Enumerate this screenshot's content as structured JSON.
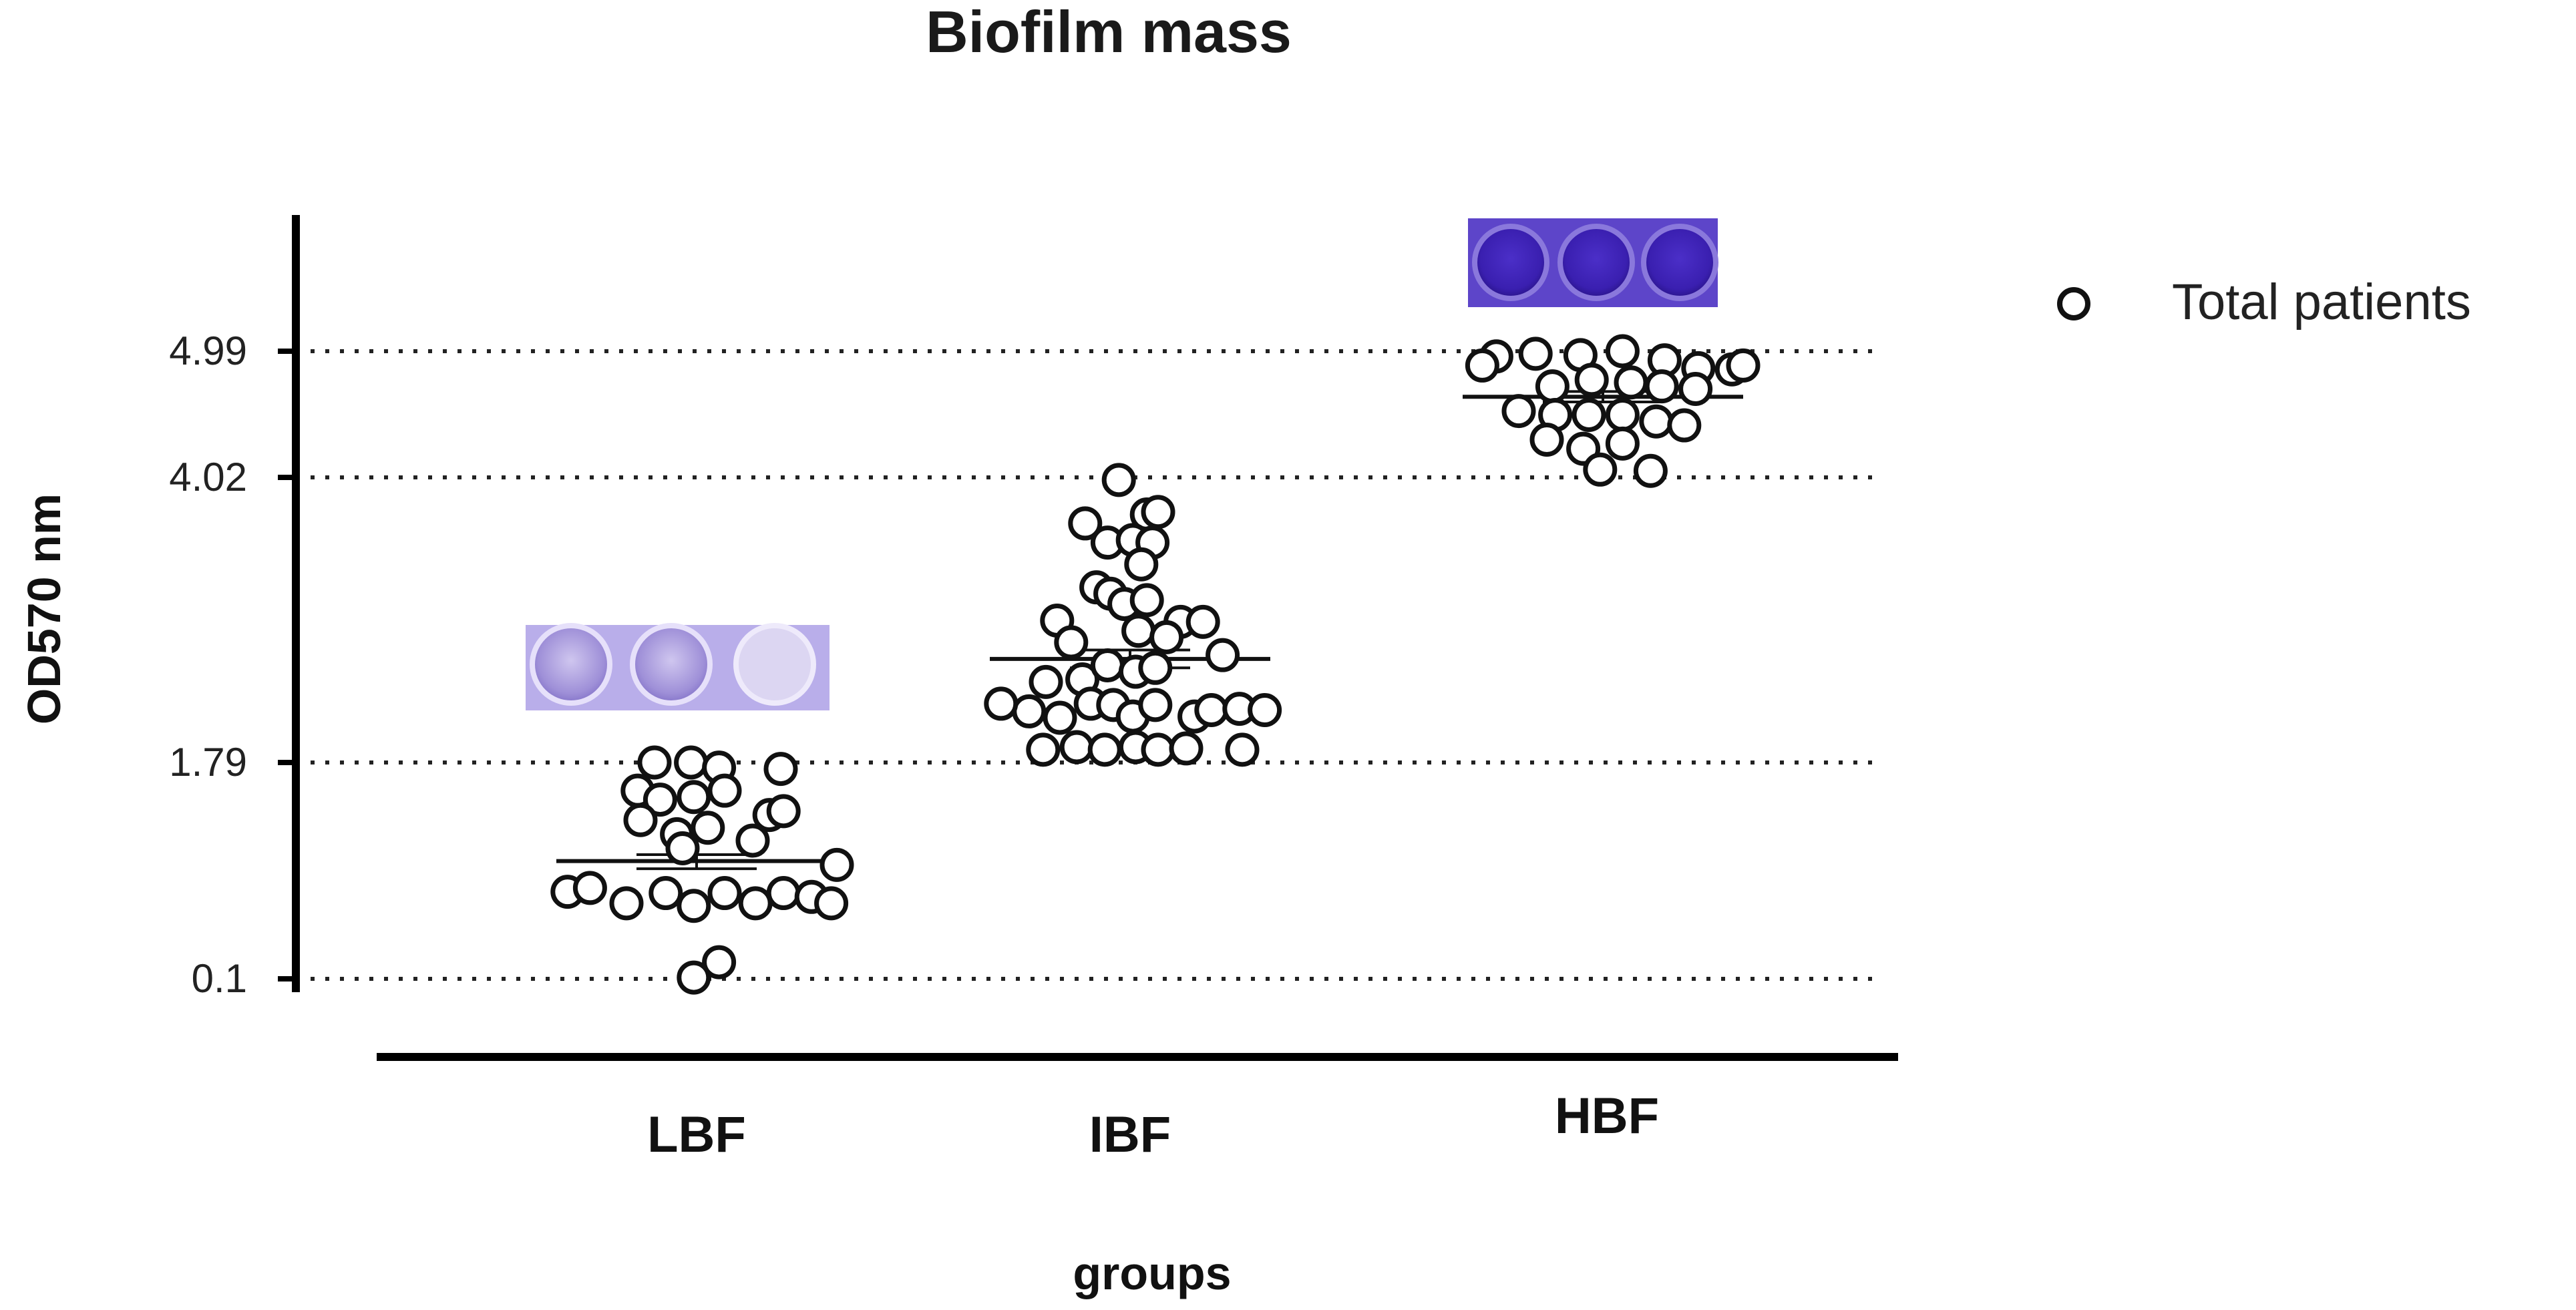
{
  "chart_data": {
    "type": "scatter",
    "title": "Biofilm mass",
    "xlabel": "groups",
    "ylabel": "OD570 nm",
    "categories": [
      "LBF",
      "IBF",
      "HBF"
    ],
    "y_ticks": [
      "4.99",
      "4.02",
      "1.79",
      "0.1"
    ],
    "ylim": [
      0,
      5.6
    ],
    "grid": "dotted horizontal lines at tick values",
    "legend": {
      "position": "top-right",
      "entries": [
        "Total patients"
      ]
    },
    "colors": {
      "marker": "#111111",
      "axis": "#000000",
      "grid": "#222222",
      "well_low": "#9f90d8",
      "well_high": "#3a1fb0"
    },
    "series": [
      {
        "name": "Total patients",
        "points": [
          {
            "group": "LBF",
            "offset": -0.15,
            "y": 1.79
          },
          {
            "group": "LBF",
            "offset": -0.02,
            "y": 1.79
          },
          {
            "group": "LBF",
            "offset": 0.08,
            "y": 1.75
          },
          {
            "group": "LBF",
            "offset": 0.3,
            "y": 1.74
          },
          {
            "group": "LBF",
            "offset": -0.21,
            "y": 1.57
          },
          {
            "group": "LBF",
            "offset": -0.13,
            "y": 1.5
          },
          {
            "group": "LBF",
            "offset": -0.01,
            "y": 1.52
          },
          {
            "group": "LBF",
            "offset": 0.1,
            "y": 1.57
          },
          {
            "group": "LBF",
            "offset": 0.26,
            "y": 1.38
          },
          {
            "group": "LBF",
            "offset": 0.31,
            "y": 1.41
          },
          {
            "group": "LBF",
            "offset": -0.2,
            "y": 1.34
          },
          {
            "group": "LBF",
            "offset": -0.07,
            "y": 1.23
          },
          {
            "group": "LBF",
            "offset": 0.04,
            "y": 1.28
          },
          {
            "group": "LBF",
            "offset": 0.2,
            "y": 1.18
          },
          {
            "group": "LBF",
            "offset": -0.05,
            "y": 1.12
          },
          {
            "group": "LBF",
            "offset": 0.5,
            "y": 0.99
          },
          {
            "group": "LBF",
            "offset": -0.46,
            "y": 0.78
          },
          {
            "group": "LBF",
            "offset": -0.38,
            "y": 0.81
          },
          {
            "group": "LBF",
            "offset": -0.25,
            "y": 0.69
          },
          {
            "group": "LBF",
            "offset": -0.11,
            "y": 0.77
          },
          {
            "group": "LBF",
            "offset": -0.01,
            "y": 0.67
          },
          {
            "group": "LBF",
            "offset": 0.1,
            "y": 0.77
          },
          {
            "group": "LBF",
            "offset": 0.21,
            "y": 0.69
          },
          {
            "group": "LBF",
            "offset": 0.31,
            "y": 0.77
          },
          {
            "group": "LBF",
            "offset": 0.41,
            "y": 0.74
          },
          {
            "group": "LBF",
            "offset": 0.48,
            "y": 0.69
          },
          {
            "group": "LBF",
            "offset": 0.08,
            "y": 0.23
          },
          {
            "group": "LBF",
            "offset": -0.01,
            "y": 0.11
          },
          {
            "group": "IBF",
            "offset": -0.04,
            "y": 4.0
          },
          {
            "group": "IBF",
            "offset": 0.06,
            "y": 3.73
          },
          {
            "group": "IBF",
            "offset": 0.1,
            "y": 3.75
          },
          {
            "group": "IBF",
            "offset": -0.16,
            "y": 3.66
          },
          {
            "group": "IBF",
            "offset": -0.08,
            "y": 3.51
          },
          {
            "group": "IBF",
            "offset": 0.01,
            "y": 3.53
          },
          {
            "group": "IBF",
            "offset": 0.08,
            "y": 3.51
          },
          {
            "group": "IBF",
            "offset": 0.04,
            "y": 3.34
          },
          {
            "group": "IBF",
            "offset": -0.12,
            "y": 3.16
          },
          {
            "group": "IBF",
            "offset": -0.07,
            "y": 3.11
          },
          {
            "group": "IBF",
            "offset": -0.02,
            "y": 3.03
          },
          {
            "group": "IBF",
            "offset": 0.06,
            "y": 3.06
          },
          {
            "group": "IBF",
            "offset": 0.18,
            "y": 2.89
          },
          {
            "group": "IBF",
            "offset": 0.26,
            "y": 2.89
          },
          {
            "group": "IBF",
            "offset": -0.26,
            "y": 2.9
          },
          {
            "group": "IBF",
            "offset": -0.21,
            "y": 2.73
          },
          {
            "group": "IBF",
            "offset": 0.03,
            "y": 2.82
          },
          {
            "group": "IBF",
            "offset": 0.13,
            "y": 2.77
          },
          {
            "group": "IBF",
            "offset": 0.33,
            "y": 2.63
          },
          {
            "group": "IBF",
            "offset": -0.3,
            "y": 2.42
          },
          {
            "group": "IBF",
            "offset": -0.17,
            "y": 2.44
          },
          {
            "group": "IBF",
            "offset": -0.08,
            "y": 2.55
          },
          {
            "group": "IBF",
            "offset": 0.02,
            "y": 2.5
          },
          {
            "group": "IBF",
            "offset": 0.09,
            "y": 2.53
          },
          {
            "group": "IBF",
            "offset": -0.14,
            "y": 2.25
          },
          {
            "group": "IBF",
            "offset": -0.06,
            "y": 2.24
          },
          {
            "group": "IBF",
            "offset": -0.25,
            "y": 2.14
          },
          {
            "group": "IBF",
            "offset": -0.36,
            "y": 2.19
          },
          {
            "group": "IBF",
            "offset": -0.46,
            "y": 2.25
          },
          {
            "group": "IBF",
            "offset": 0.01,
            "y": 2.15
          },
          {
            "group": "IBF",
            "offset": 0.09,
            "y": 2.24
          },
          {
            "group": "IBF",
            "offset": 0.23,
            "y": 2.15
          },
          {
            "group": "IBF",
            "offset": 0.29,
            "y": 2.2
          },
          {
            "group": "IBF",
            "offset": 0.39,
            "y": 2.21
          },
          {
            "group": "IBF",
            "offset": 0.48,
            "y": 2.2
          },
          {
            "group": "IBF",
            "offset": -0.31,
            "y": 1.89
          },
          {
            "group": "IBF",
            "offset": -0.19,
            "y": 1.91
          },
          {
            "group": "IBF",
            "offset": -0.09,
            "y": 1.89
          },
          {
            "group": "IBF",
            "offset": 0.02,
            "y": 1.91
          },
          {
            "group": "IBF",
            "offset": 0.1,
            "y": 1.89
          },
          {
            "group": "IBF",
            "offset": 0.2,
            "y": 1.9
          },
          {
            "group": "IBF",
            "offset": 0.4,
            "y": 1.89
          },
          {
            "group": "HBF",
            "offset": -0.38,
            "y": 4.95
          },
          {
            "group": "HBF",
            "offset": -0.24,
            "y": 4.97
          },
          {
            "group": "HBF",
            "offset": -0.08,
            "y": 4.96
          },
          {
            "group": "HBF",
            "offset": 0.07,
            "y": 4.99
          },
          {
            "group": "HBF",
            "offset": 0.22,
            "y": 4.92
          },
          {
            "group": "HBF",
            "offset": 0.34,
            "y": 4.86
          },
          {
            "group": "HBF",
            "offset": 0.46,
            "y": 4.85
          },
          {
            "group": "HBF",
            "offset": 0.5,
            "y": 4.88
          },
          {
            "group": "HBF",
            "offset": -0.43,
            "y": 4.88
          },
          {
            "group": "HBF",
            "offset": -0.18,
            "y": 4.72
          },
          {
            "group": "HBF",
            "offset": -0.04,
            "y": 4.77
          },
          {
            "group": "HBF",
            "offset": 0.1,
            "y": 4.75
          },
          {
            "group": "HBF",
            "offset": 0.21,
            "y": 4.72
          },
          {
            "group": "HBF",
            "offset": 0.33,
            "y": 4.7
          },
          {
            "group": "HBF",
            "offset": -0.3,
            "y": 4.53
          },
          {
            "group": "HBF",
            "offset": -0.17,
            "y": 4.5
          },
          {
            "group": "HBF",
            "offset": -0.05,
            "y": 4.5
          },
          {
            "group": "HBF",
            "offset": 0.07,
            "y": 4.5
          },
          {
            "group": "HBF",
            "offset": 0.19,
            "y": 4.45
          },
          {
            "group": "HBF",
            "offset": 0.29,
            "y": 4.42
          },
          {
            "group": "HBF",
            "offset": -0.2,
            "y": 4.31
          },
          {
            "group": "HBF",
            "offset": -0.07,
            "y": 4.24
          },
          {
            "group": "HBF",
            "offset": 0.07,
            "y": 4.28
          },
          {
            "group": "HBF",
            "offset": -0.01,
            "y": 4.08
          },
          {
            "group": "HBF",
            "offset": 0.17,
            "y": 4.07
          }
        ]
      }
    ],
    "summary_lines": [
      {
        "group": "LBF",
        "mean": 1.02,
        "error_low": 0.96,
        "error_high": 1.07
      },
      {
        "group": "IBF",
        "mean": 2.6,
        "error_low": 2.53,
        "error_high": 2.67
      },
      {
        "group": "HBF",
        "mean": 4.64,
        "error_low": 4.6,
        "error_high": 4.68
      }
    ],
    "well_strips": [
      {
        "group": "LBF",
        "shade": "light violet"
      },
      {
        "group": "HBF",
        "shade": "dark violet"
      }
    ]
  }
}
